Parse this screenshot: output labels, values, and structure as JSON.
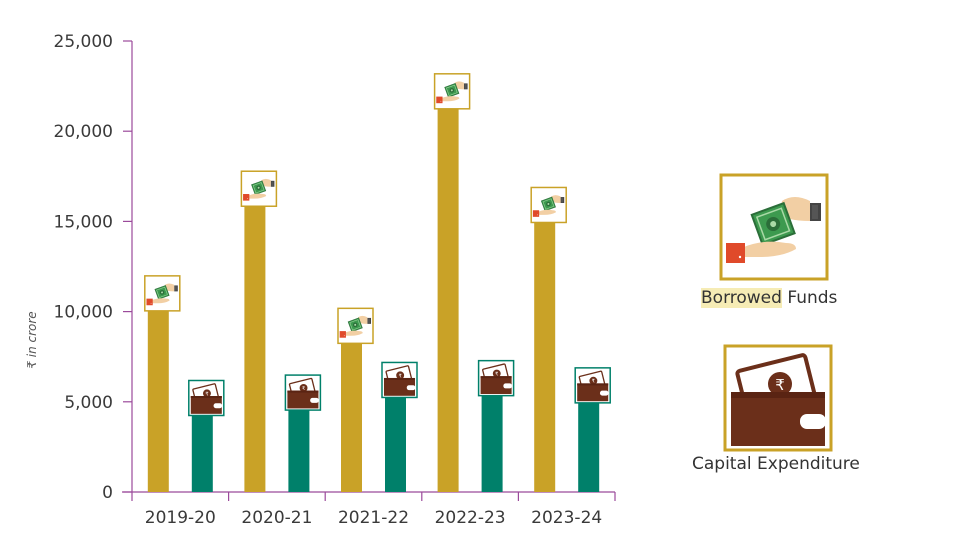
{
  "chart_data": {
    "type": "bar",
    "categories": [
      "2019-20",
      "2020-21",
      "2021-22",
      "2022-23",
      "2023-24"
    ],
    "series": [
      {
        "name": "Borrowed Funds",
        "values": [
          10900,
          16700,
          9100,
          22100,
          15800
        ],
        "color": "#c9a227",
        "icon": "money-hand-icon"
      },
      {
        "name": "Capital Expenditure",
        "values": [
          5100,
          5400,
          6100,
          6200,
          5800
        ],
        "color": "#00806a",
        "icon": "wallet-rupee-icon"
      }
    ],
    "ylabel": "₹ in crore",
    "ylim": [
      0,
      25000
    ],
    "yticks": [
      "0",
      "5,000",
      "10,000",
      "15,000",
      "20,000",
      "25,000"
    ],
    "grid": false,
    "legend_position": "right"
  },
  "legend": {
    "borrowed_highlight": "Borrowed",
    "borrowed_rest": " Funds",
    "capex": "Capital Expenditure"
  },
  "colors": {
    "axis": "#9b4a9b",
    "icon_frame_gold": "#c9a227",
    "icon_frame_green": "#00806a",
    "wallet_brown": "#6b2f1a",
    "cash_green": "#3d9a4f",
    "cuff_red": "#e04a2a",
    "skin": "#f2cfa4",
    "highlight": "#f6ecb5"
  }
}
